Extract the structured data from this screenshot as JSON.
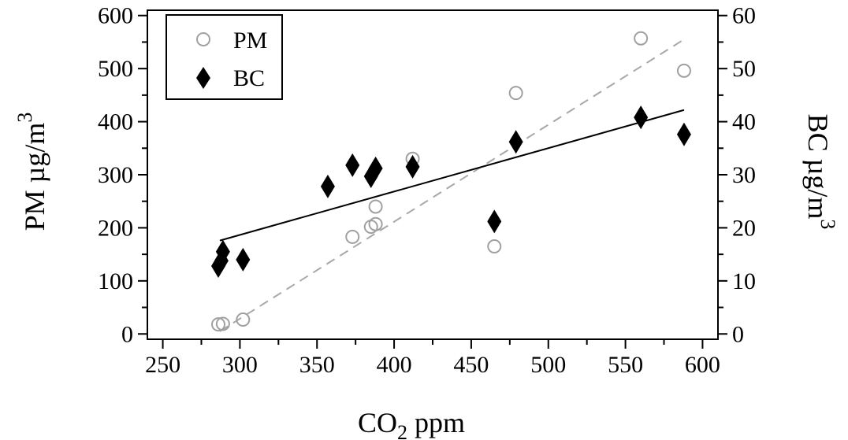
{
  "chart_data": {
    "type": "scatter",
    "x_axis": {
      "label_main": "CO",
      "label_sub": "2",
      "label_rest": " ppm",
      "min": 240,
      "max": 610,
      "ticks": [
        250,
        300,
        350,
        400,
        450,
        500,
        550,
        600
      ],
      "tick_labels": [
        "250",
        "300",
        "350",
        "400",
        "450",
        "500",
        "550",
        "600"
      ]
    },
    "y_left": {
      "label_main": "PM µg/m",
      "label_sup": "3",
      "min": -10,
      "max": 610,
      "ticks": [
        0,
        100,
        200,
        300,
        400,
        500,
        600
      ],
      "tick_labels": [
        "0",
        "100",
        "200",
        "300",
        "400",
        "500",
        "600"
      ]
    },
    "y_right": {
      "label_main": "BC µg/m",
      "label_sup": "3",
      "min": -1,
      "max": 61,
      "ticks": [
        0,
        10,
        20,
        30,
        40,
        50,
        60
      ],
      "tick_labels": [
        "0",
        "10",
        "20",
        "30",
        "40",
        "50",
        "60"
      ]
    },
    "legend": {
      "placement": "top-left",
      "entries": [
        "PM",
        "BC"
      ]
    },
    "series": [
      {
        "name": "PM",
        "axis": "left",
        "marker": "open-circle",
        "color": "#a0a0a0",
        "points": [
          [
            286,
            18
          ],
          [
            289,
            19
          ],
          [
            302,
            27
          ],
          [
            373,
            183
          ],
          [
            385,
            202
          ],
          [
            388,
            207
          ],
          [
            388,
            240
          ],
          [
            412,
            330
          ],
          [
            465,
            165
          ],
          [
            479,
            454
          ],
          [
            560,
            557
          ],
          [
            588,
            496
          ]
        ],
        "fit": {
          "style": "dashed",
          "color": "#a8a8a8",
          "x1": 287,
          "y1": 5,
          "x2": 588,
          "y2": 555
        }
      },
      {
        "name": "BC",
        "axis": "right",
        "marker": "filled-diamond",
        "color": "#000000",
        "points": [
          [
            286,
            12.8
          ],
          [
            288,
            13.8
          ],
          [
            289,
            15.5
          ],
          [
            302,
            14.0
          ],
          [
            357,
            27.8
          ],
          [
            373,
            31.8
          ],
          [
            385,
            29.7
          ],
          [
            388,
            31.2
          ],
          [
            412,
            31.5
          ],
          [
            465,
            21.2
          ],
          [
            479,
            36.2
          ],
          [
            560,
            40.8
          ],
          [
            588,
            37.6
          ]
        ],
        "fit": {
          "style": "solid",
          "color": "#000000",
          "x1": 287,
          "y1": 17.6,
          "x2": 588,
          "y2": 42.2
        }
      }
    ]
  }
}
